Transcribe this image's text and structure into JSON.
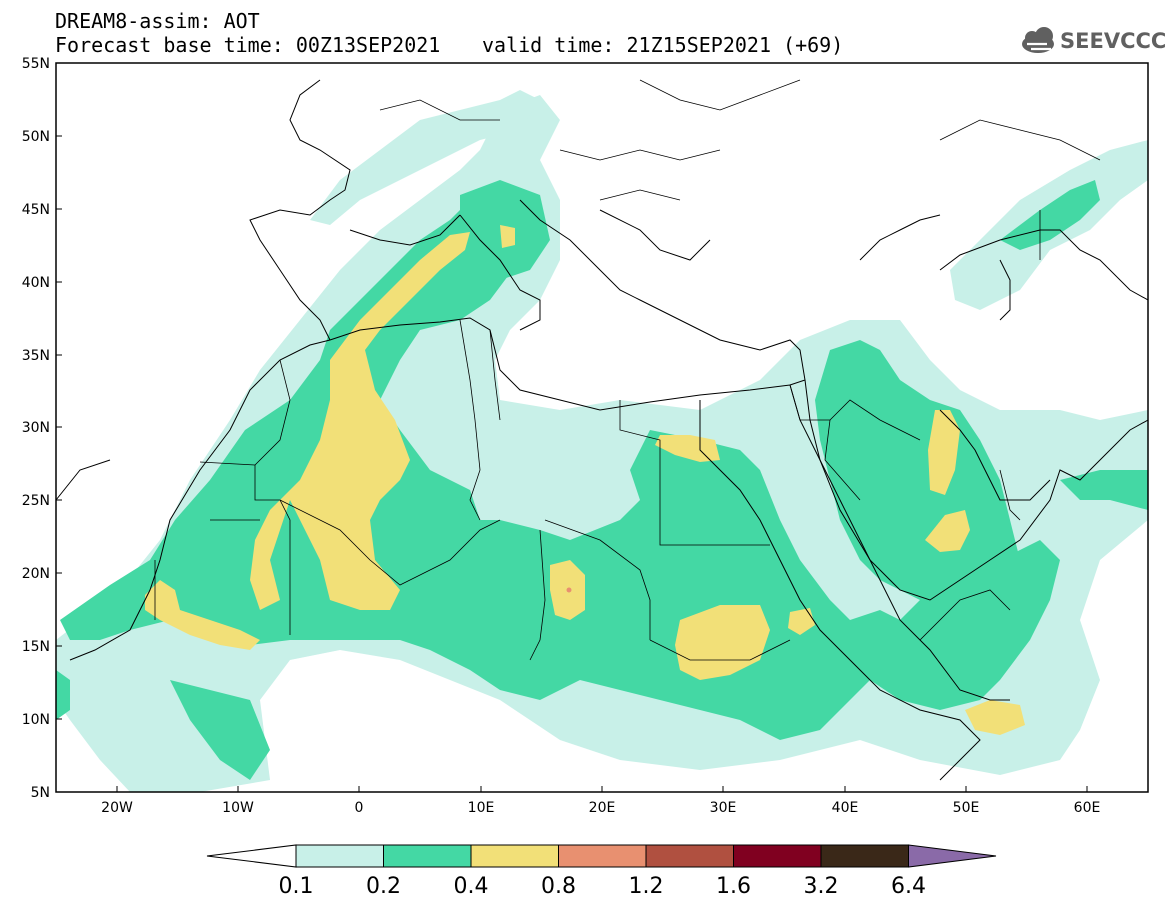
{
  "header": {
    "line1": "DREAM8-assim: AOT",
    "line2": "Forecast base time: 00Z13SEP2021",
    "line3": "valid time: 21Z15SEP2021 (+69)"
  },
  "logo": {
    "text": "SEEVCCC",
    "icon": "cloud-icon"
  },
  "map": {
    "lat_labels": [
      "55N",
      "50N",
      "45N",
      "40N",
      "35N",
      "30N",
      "25N",
      "20N",
      "15N",
      "10N",
      "5N"
    ],
    "lon_labels": [
      "20W",
      "10W",
      "0",
      "10E",
      "20E",
      "30E",
      "40E",
      "50E",
      "60E"
    ],
    "lon_range": [
      -25,
      65
    ],
    "lat_range": [
      5,
      55
    ]
  },
  "colorbar": {
    "labels": [
      "0.1",
      "0.2",
      "0.4",
      "0.8",
      "1.2",
      "1.6",
      "3.2",
      "6.4"
    ],
    "colors": [
      "#c8f0e8",
      "#44d8a4",
      "#f2e078",
      "#e89070",
      "#b05040",
      "#800020",
      "#3a2818",
      "#8a6aa8"
    ]
  },
  "colors": {
    "level_0_1": "#c8f0e8",
    "level_0_2": "#44d8a4",
    "level_0_4": "#f2e078",
    "level_0_8": "#e89070"
  }
}
